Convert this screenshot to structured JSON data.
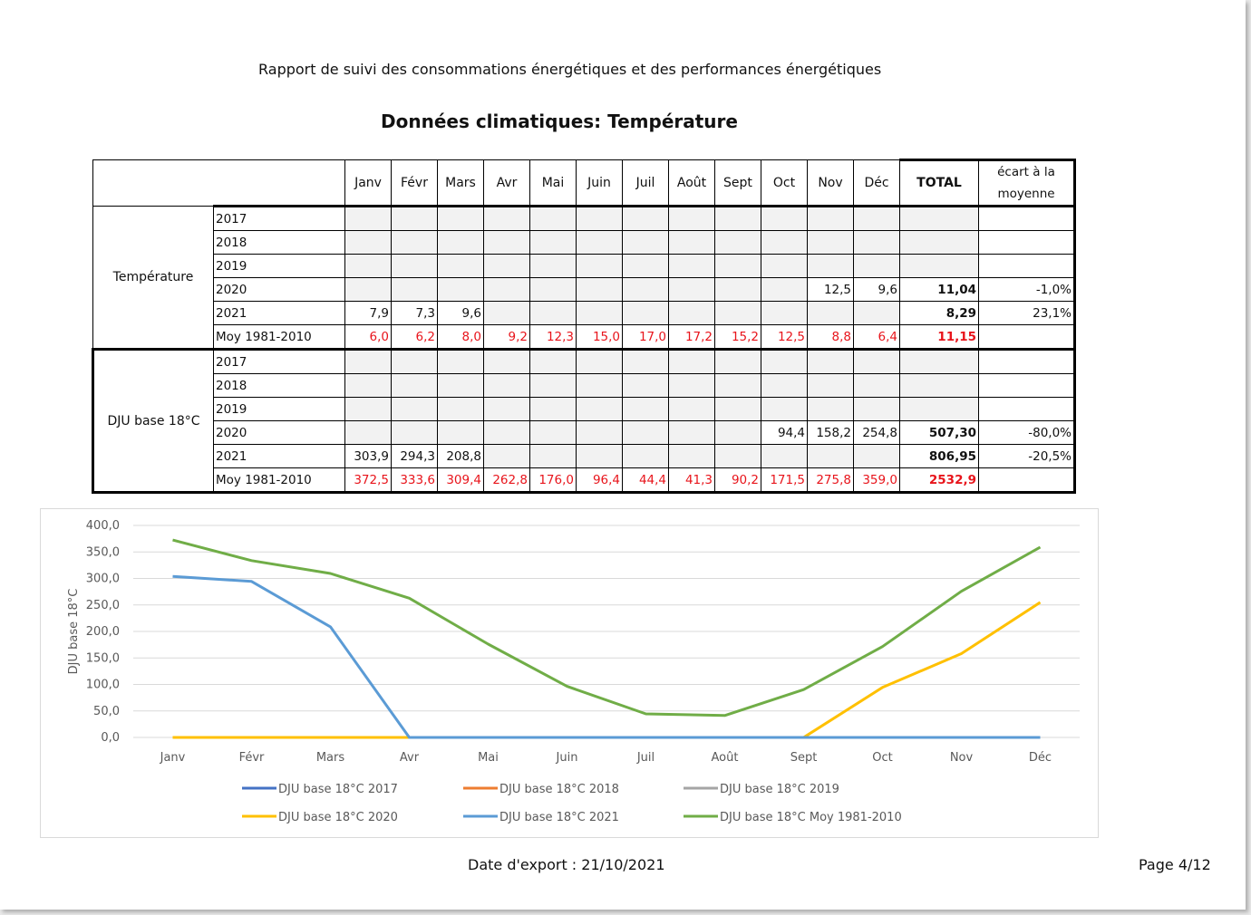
{
  "header": {
    "report_title": "Rapport de suivi des consommations énergétiques et des performances énergétiques"
  },
  "section_title": "Données climatiques: Température",
  "table": {
    "months": [
      "Janv",
      "Févr",
      "Mars",
      "Avr",
      "Mai",
      "Juin",
      "Juil",
      "Août",
      "Sept",
      "Oct",
      "Nov",
      "Déc"
    ],
    "total_label": "TOTAL",
    "ecart_label": "écart à la moyenne",
    "groups": [
      {
        "label": "Température",
        "rows": [
          {
            "year": "2017",
            "values": [
              "",
              "",
              "",
              "",
              "",
              "",
              "",
              "",
              "",
              "",
              "",
              ""
            ],
            "total": "",
            "ecart": ""
          },
          {
            "year": "2018",
            "values": [
              "",
              "",
              "",
              "",
              "",
              "",
              "",
              "",
              "",
              "",
              "",
              ""
            ],
            "total": "",
            "ecart": ""
          },
          {
            "year": "2019",
            "values": [
              "",
              "",
              "",
              "",
              "",
              "",
              "",
              "",
              "",
              "",
              "",
              ""
            ],
            "total": "",
            "ecart": ""
          },
          {
            "year": "2020",
            "values": [
              "",
              "",
              "",
              "",
              "",
              "",
              "",
              "",
              "",
              "",
              "12,5",
              "9,6"
            ],
            "total": "11,04",
            "ecart": "-1,0%"
          },
          {
            "year": "2021",
            "values": [
              "7,9",
              "7,3",
              "9,6",
              "",
              "",
              "",
              "",
              "",
              "",
              "",
              "",
              ""
            ],
            "total": "8,29",
            "ecart": "23,1%"
          },
          {
            "year": "Moy 1981-2010",
            "values": [
              "6,0",
              "6,2",
              "8,0",
              "9,2",
              "12,3",
              "15,0",
              "17,0",
              "17,2",
              "15,2",
              "12,5",
              "8,8",
              "6,4"
            ],
            "total": "11,15",
            "ecart": ""
          }
        ]
      },
      {
        "label": "DJU base 18°C",
        "rows": [
          {
            "year": "2017",
            "values": [
              "",
              "",
              "",
              "",
              "",
              "",
              "",
              "",
              "",
              "",
              "",
              ""
            ],
            "total": "",
            "ecart": ""
          },
          {
            "year": "2018",
            "values": [
              "",
              "",
              "",
              "",
              "",
              "",
              "",
              "",
              "",
              "",
              "",
              ""
            ],
            "total": "",
            "ecart": ""
          },
          {
            "year": "2019",
            "values": [
              "",
              "",
              "",
              "",
              "",
              "",
              "",
              "",
              "",
              "",
              "",
              ""
            ],
            "total": "",
            "ecart": ""
          },
          {
            "year": "2020",
            "values": [
              "",
              "",
              "",
              "",
              "",
              "",
              "",
              "",
              "",
              "94,4",
              "158,2",
              "254,8"
            ],
            "total": "507,30",
            "ecart": "-80,0%"
          },
          {
            "year": "2021",
            "values": [
              "303,9",
              "294,3",
              "208,8",
              "",
              "",
              "",
              "",
              "",
              "",
              "",
              "",
              ""
            ],
            "total": "806,95",
            "ecart": "-20,5%"
          },
          {
            "year": "Moy 1981-2010",
            "values": [
              "372,5",
              "333,6",
              "309,4",
              "262,8",
              "176,0",
              "96,4",
              "44,4",
              "41,3",
              "90,2",
              "171,5",
              "275,8",
              "359,0"
            ],
            "total": "2532,9",
            "ecart": ""
          }
        ]
      }
    ]
  },
  "chart_data": {
    "type": "line",
    "ylabel": "DJU base 18°C",
    "ylim": [
      0,
      400
    ],
    "yticks": [
      "0,0",
      "50,0",
      "100,0",
      "150,0",
      "200,0",
      "250,0",
      "300,0",
      "350,0",
      "400,0"
    ],
    "ytick_values": [
      0,
      50,
      100,
      150,
      200,
      250,
      300,
      350,
      400
    ],
    "categories": [
      "Janv",
      "Févr",
      "Mars",
      "Avr",
      "Mai",
      "Juin",
      "Juil",
      "Août",
      "Sept",
      "Oct",
      "Nov",
      "Déc"
    ],
    "grid": true,
    "legend_position": "bottom",
    "series": [
      {
        "name": "DJU base 18°C 2017",
        "color": "#4472c4",
        "values": [
          0,
          0,
          0,
          0,
          0,
          0,
          0,
          0,
          0,
          0,
          0,
          0
        ]
      },
      {
        "name": "DJU base 18°C 2018",
        "color": "#ed7d31",
        "values": [
          0,
          0,
          0,
          0,
          0,
          0,
          0,
          0,
          0,
          0,
          0,
          0
        ]
      },
      {
        "name": "DJU base 18°C 2019",
        "color": "#a5a5a5",
        "values": [
          0,
          0,
          0,
          0,
          0,
          0,
          0,
          0,
          0,
          0,
          0,
          0
        ]
      },
      {
        "name": "DJU base 18°C 2020",
        "color": "#ffc000",
        "values": [
          0,
          0,
          0,
          0,
          0,
          0,
          0,
          0,
          0,
          94.4,
          158.2,
          254.8
        ]
      },
      {
        "name": "DJU base 18°C 2021",
        "color": "#5b9bd5",
        "values": [
          303.9,
          294.3,
          208.8,
          0,
          0,
          0,
          0,
          0,
          0,
          0,
          0,
          0
        ]
      },
      {
        "name": "DJU base 18°C Moy 1981-2010",
        "color": "#70ad47",
        "values": [
          372.5,
          333.6,
          309.4,
          262.8,
          176.0,
          96.4,
          44.4,
          41.3,
          90.2,
          171.5,
          275.8,
          359.0
        ]
      }
    ]
  },
  "footer": {
    "export_date": "Date d'export : 21/10/2021",
    "page": "Page 4/12"
  }
}
